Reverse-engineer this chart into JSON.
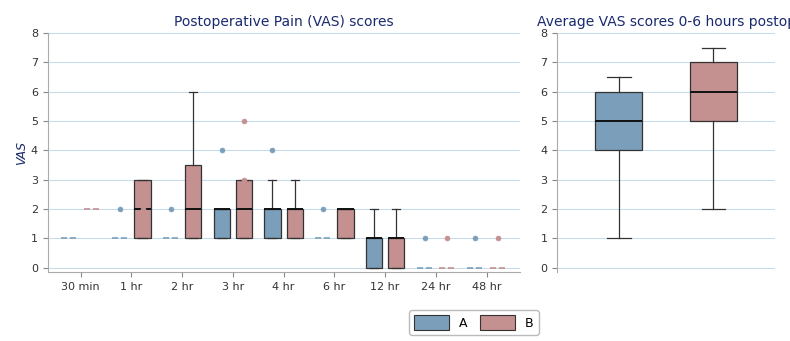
{
  "title_left": "Postoperative Pain (VAS) scores",
  "title_right": "Average VAS scores 0-6 hours postop",
  "ylabel_left": "VAS",
  "color_A": "#7b9fba",
  "color_B": "#c49090",
  "title_color": "#1a2a6e",
  "xlabels": [
    "30 min",
    "1 hr",
    "2 hr",
    "3 hr",
    "4 hr",
    "6 hr",
    "12 hr",
    "24 hr",
    "48 hr"
  ],
  "left_ylim": [
    -0.15,
    8
  ],
  "right_ylim": [
    -0.15,
    8
  ],
  "left_yticks": [
    0,
    1,
    2,
    3,
    4,
    5,
    6,
    7,
    8
  ],
  "right_yticks": [
    0,
    1,
    2,
    3,
    4,
    5,
    6,
    7,
    8
  ],
  "boxA_left": {
    "30min": {
      "whislo": 1,
      "q1": 1,
      "med": 1,
      "q3": 1,
      "whishi": 1,
      "fliers": []
    },
    "1hr": {
      "whislo": 1,
      "q1": 1,
      "med": 1,
      "q3": 1,
      "whishi": 1,
      "fliers": [
        2
      ]
    },
    "2hr": {
      "whislo": 1,
      "q1": 1,
      "med": 1,
      "q3": 1,
      "whishi": 1,
      "fliers": [
        2
      ]
    },
    "3hr": {
      "whislo": 1,
      "q1": 1,
      "med": 2,
      "q3": 2,
      "whishi": 2,
      "fliers": [
        4
      ]
    },
    "4hr": {
      "whislo": 1,
      "q1": 1,
      "med": 2,
      "q3": 2,
      "whishi": 3,
      "fliers": [
        4
      ]
    },
    "6hr": {
      "whislo": 1,
      "q1": 1,
      "med": 1,
      "q3": 1,
      "whishi": 1,
      "fliers": [
        2
      ]
    },
    "12hr": {
      "whislo": 0,
      "q1": 0,
      "med": 1,
      "q3": 1,
      "whishi": 2,
      "fliers": []
    },
    "24hr": {
      "whislo": 0,
      "q1": 0,
      "med": 0,
      "q3": 0,
      "whishi": 0,
      "fliers": [
        1
      ]
    },
    "48hr": {
      "whislo": 0,
      "q1": 0,
      "med": 0,
      "q3": 0,
      "whishi": 0,
      "fliers": [
        1
      ]
    }
  },
  "boxB_left": {
    "30min": {
      "whislo": 2,
      "q1": 2,
      "med": 2,
      "q3": 2,
      "whishi": 2,
      "fliers": []
    },
    "1hr": {
      "whislo": 1,
      "q1": 1,
      "med": 2,
      "q3": 3,
      "whishi": 3,
      "fliers": [
        2
      ]
    },
    "2hr": {
      "whislo": 1,
      "q1": 1,
      "med": 2,
      "q3": 3.5,
      "whishi": 6,
      "fliers": []
    },
    "3hr": {
      "whislo": 1,
      "q1": 1,
      "med": 2,
      "q3": 3,
      "whishi": 3,
      "fliers": [
        5,
        3
      ]
    },
    "4hr": {
      "whislo": 1,
      "q1": 1,
      "med": 2,
      "q3": 2,
      "whishi": 3,
      "fliers": []
    },
    "6hr": {
      "whislo": 1,
      "q1": 1,
      "med": 2,
      "q3": 2,
      "whishi": 2,
      "fliers": []
    },
    "12hr": {
      "whislo": 0,
      "q1": 0,
      "med": 1,
      "q3": 1,
      "whishi": 2,
      "fliers": []
    },
    "24hr": {
      "whislo": 0,
      "q1": 0,
      "med": 0,
      "q3": 0,
      "whishi": 0,
      "fliers": [
        1
      ]
    },
    "48hr": {
      "whislo": 0,
      "q1": 0,
      "med": 0,
      "q3": 0,
      "whishi": 0,
      "fliers": [
        1
      ]
    }
  },
  "boxA_right": {
    "whislo": 1,
    "q1": 4,
    "med": 5,
    "q3": 6,
    "whishi": 6.5
  },
  "boxB_right": {
    "whislo": 2,
    "q1": 5,
    "med": 6,
    "q3": 7,
    "whishi": 7.5
  }
}
